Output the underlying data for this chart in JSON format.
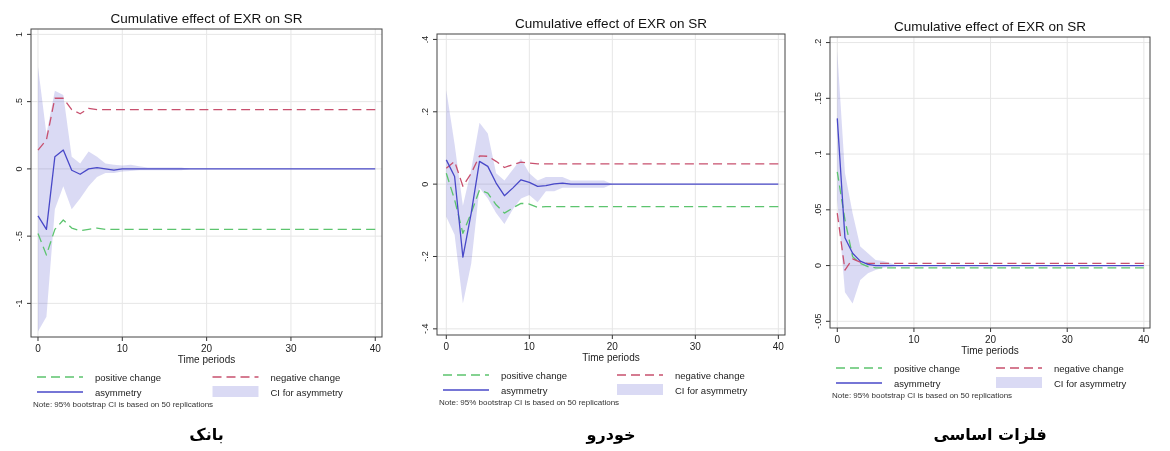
{
  "chart_data": [
    {
      "type": "line",
      "title": "Cumulative effect of EXR on SR",
      "xlabel": "Time periods",
      "x": [
        0,
        1,
        2,
        3,
        4,
        5,
        6,
        7,
        8,
        9,
        10,
        11,
        12,
        13,
        14,
        15,
        16,
        17,
        18,
        19,
        20,
        21,
        22,
        23,
        24,
        25,
        26,
        27,
        28,
        29,
        30,
        31,
        32,
        33,
        34,
        35,
        36,
        37,
        38,
        39,
        40
      ],
      "xlim": [
        -0.83,
        40.8
      ],
      "xticks": [
        0,
        10,
        20,
        30,
        40
      ],
      "ylim": [
        -1.25,
        1.04
      ],
      "yticks": [
        1,
        {
          "value": 0.5,
          "label": ".5"
        },
        0,
        {
          "value": -0.5,
          "label": "-.5"
        },
        -1
      ],
      "grid": true,
      "legend": "bottom",
      "annotations": [
        "CI for asymmetry",
        "Note: 95% bootstrap CI is based on 50 replications",
        "بانک"
      ],
      "series": [
        {
          "name": "positive change",
          "color": "#5cc46e",
          "line_style": "dashed",
          "values": [
            -0.48,
            -0.64,
            -0.45,
            -0.38,
            -0.44,
            -0.46,
            -0.45,
            -0.44,
            -0.45,
            -0.45,
            -0.45,
            -0.45,
            -0.45,
            -0.45,
            -0.45,
            -0.45,
            -0.45,
            -0.45,
            -0.45,
            -0.45,
            -0.45,
            -0.45,
            -0.45,
            -0.45,
            -0.45,
            -0.45,
            -0.45,
            -0.45,
            -0.45,
            -0.45,
            -0.45,
            -0.45,
            -0.45,
            -0.45,
            -0.45,
            -0.45,
            -0.45,
            -0.45,
            -0.45,
            -0.45,
            -0.45
          ]
        },
        {
          "name": "negative change",
          "color": "#c8506e",
          "line_style": "dashed",
          "values": [
            0.14,
            0.215,
            0.525,
            0.525,
            0.44,
            0.41,
            0.45,
            0.44,
            0.44,
            0.44,
            0.44,
            0.44,
            0.44,
            0.44,
            0.44,
            0.44,
            0.44,
            0.44,
            0.44,
            0.44,
            0.44,
            0.44,
            0.44,
            0.44,
            0.44,
            0.44,
            0.44,
            0.44,
            0.44,
            0.44,
            0.44,
            0.44,
            0.44,
            0.44,
            0.44,
            0.44,
            0.44,
            0.44,
            0.44,
            0.44,
            0.44
          ]
        },
        {
          "name": "asymmetry",
          "color": "#4848c8",
          "line_style": "solid",
          "values": [
            -0.35,
            -0.45,
            0.09,
            0.14,
            -0.01,
            -0.04,
            0,
            0.01,
            0,
            -0.01,
            0,
            0,
            0,
            0,
            0,
            0,
            0,
            0,
            0,
            0,
            0,
            0,
            0,
            0,
            0,
            0,
            0,
            0,
            0,
            0,
            0,
            0,
            0,
            0,
            0,
            0,
            0,
            0,
            0,
            0,
            0
          ],
          "upper": [
            0.76,
            0.26,
            0.58,
            0.55,
            0.09,
            0.04,
            0.13,
            0.09,
            0.04,
            0.03,
            0.025,
            0.03,
            0.02,
            0.01,
            0.01,
            0.01,
            0.01,
            0.01,
            0,
            0,
            0,
            0,
            0,
            0,
            0,
            0,
            0,
            0,
            0,
            0,
            0,
            0,
            0,
            0,
            0,
            0,
            0,
            0,
            0,
            0,
            0
          ],
          "lower": [
            -1.21,
            -1.1,
            -0.3,
            -0.13,
            -0.3,
            -0.22,
            -0.13,
            -0.06,
            -0.03,
            -0.03,
            -0.02,
            -0.015,
            -0.01,
            -0.01,
            -0.01,
            -0.01,
            -0.01,
            -0.01,
            0,
            0,
            0,
            0,
            0,
            0,
            0,
            0,
            0,
            0,
            0,
            0,
            0,
            0,
            0,
            0,
            0,
            0,
            0,
            0,
            0,
            0,
            0
          ]
        }
      ]
    },
    {
      "type": "line",
      "title": "Cumulative effect of EXR on SR",
      "xlabel": "Time periods",
      "x": [
        0,
        1,
        2,
        3,
        4,
        5,
        6,
        7,
        8,
        9,
        10,
        11,
        12,
        13,
        14,
        15,
        16,
        17,
        18,
        19,
        20,
        21,
        22,
        23,
        24,
        25,
        26,
        27,
        28,
        29,
        30,
        31,
        32,
        33,
        34,
        35,
        36,
        37,
        38,
        39,
        40
      ],
      "xlim": [
        -1.12,
        40.8
      ],
      "xticks": [
        0,
        10,
        20,
        30,
        40
      ],
      "ylim": [
        -0.417,
        0.415
      ],
      "yticks": [
        {
          "value": 0.4,
          "label": ".4"
        },
        {
          "value": 0.2,
          "label": ".2"
        },
        0,
        {
          "value": -0.2,
          "label": "-.2"
        },
        {
          "value": -0.4,
          "label": "-.4"
        }
      ],
      "grid": true,
      "legend": "bottom",
      "annotations": [
        "CI for asymmetry",
        "Note: 95% bootstrap CI is based on 50 replications",
        "خودرو"
      ],
      "series": [
        {
          "name": "positive change",
          "color": "#5cc46e",
          "line_style": "dashed",
          "values": [
            0.03,
            -0.043,
            -0.136,
            -0.08,
            -0.016,
            -0.025,
            -0.057,
            -0.08,
            -0.066,
            -0.053,
            -0.055,
            -0.064,
            -0.062,
            -0.062,
            -0.062,
            -0.062,
            -0.062,
            -0.062,
            -0.062,
            -0.062,
            -0.062,
            -0.062,
            -0.062,
            -0.062,
            -0.062,
            -0.062,
            -0.062,
            -0.062,
            -0.062,
            -0.062,
            -0.062,
            -0.062,
            -0.062,
            -0.062,
            -0.062,
            -0.062,
            -0.062,
            -0.062,
            -0.062,
            -0.062,
            -0.062
          ]
        },
        {
          "name": "negative change",
          "color": "#c8506e",
          "line_style": "dashed",
          "values": [
            0.044,
            0.063,
            -0.006,
            0.03,
            0.078,
            0.077,
            0.063,
            0.046,
            0.054,
            0.061,
            0.058,
            0.056,
            0.056,
            0.056,
            0.056,
            0.056,
            0.056,
            0.056,
            0.056,
            0.056,
            0.056,
            0.056,
            0.056,
            0.056,
            0.056,
            0.056,
            0.056,
            0.056,
            0.056,
            0.056,
            0.056,
            0.056,
            0.056,
            0.056,
            0.056,
            0.056,
            0.056,
            0.056,
            0.056,
            0.056,
            0.056
          ]
        },
        {
          "name": "asymmetry",
          "color": "#4848c8",
          "line_style": "solid",
          "values": [
            0.067,
            0.021,
            -0.202,
            -0.08,
            0.063,
            0.049,
            0.003,
            -0.032,
            -0.011,
            0.012,
            0.005,
            -0.006,
            -0.004,
            0.001,
            0.003,
            0,
            0,
            0,
            0,
            0,
            0,
            0,
            0,
            0,
            0,
            0,
            0,
            0,
            0,
            0,
            0,
            0,
            0,
            0,
            0,
            0,
            0,
            0,
            0,
            0,
            0
          ],
          "upper": [
            0.26,
            0.11,
            -0.06,
            0.04,
            0.17,
            0.14,
            0.03,
            0.01,
            0.04,
            0.07,
            0.03,
            0.01,
            0.02,
            0.02,
            0.02,
            0.01,
            0.01,
            0.01,
            0.01,
            0.01,
            0,
            0,
            0,
            0,
            0,
            0,
            0,
            0,
            0,
            0,
            0,
            0,
            0,
            0,
            0,
            0,
            0,
            0,
            0,
            0,
            0
          ],
          "lower": [
            -0.09,
            -0.14,
            -0.33,
            -0.22,
            -0.01,
            -0.04,
            -0.08,
            -0.11,
            -0.07,
            -0.04,
            -0.03,
            -0.05,
            -0.02,
            -0.02,
            -0.01,
            -0.01,
            -0.01,
            -0.01,
            -0.01,
            -0.01,
            0,
            0,
            0,
            0,
            0,
            0,
            0,
            0,
            0,
            0,
            0,
            0,
            0,
            0,
            0,
            0,
            0,
            0,
            0,
            0,
            0
          ]
        }
      ]
    },
    {
      "type": "line",
      "title": "Cumulative effect of EXR on SR",
      "xlabel": "Time periods",
      "x": [
        0,
        1,
        2,
        3,
        4,
        5,
        6,
        7,
        8,
        9,
        10,
        11,
        12,
        13,
        14,
        15,
        16,
        17,
        18,
        19,
        20,
        21,
        22,
        23,
        24,
        25,
        26,
        27,
        28,
        29,
        30,
        31,
        32,
        33,
        34,
        35,
        36,
        37,
        38,
        39,
        40
      ],
      "xlim": [
        -0.95,
        40.8
      ],
      "xticks": [
        0,
        10,
        20,
        30,
        40
      ],
      "ylim": [
        -0.056,
        0.205
      ],
      "yticks": [
        {
          "value": 0.2,
          "label": ".2"
        },
        {
          "value": 0.15,
          "label": ".15"
        },
        {
          "value": 0.1,
          "label": ".1"
        },
        {
          "value": 0.05,
          "label": ".05"
        },
        0,
        {
          "value": -0.05,
          "label": "-.05"
        }
      ],
      "grid": true,
      "legend": "bottom",
      "annotations": [
        "CI for asymmetry",
        "Note: 95% bootstrap CI is based on 50 replications",
        "فلزات اساسی"
      ],
      "series": [
        {
          "name": "positive change",
          "color": "#5cc46e",
          "line_style": "dashed",
          "values": [
            0.084,
            0.041,
            0.008,
            0.002,
            -0.001,
            -0.002,
            -0.002,
            -0.002,
            -0.002,
            -0.002,
            -0.002,
            -0.002,
            -0.002,
            -0.002,
            -0.002,
            -0.002,
            -0.002,
            -0.002,
            -0.002,
            -0.002,
            -0.002,
            -0.002,
            -0.002,
            -0.002,
            -0.002,
            -0.002,
            -0.002,
            -0.002,
            -0.002,
            -0.002,
            -0.002,
            -0.002,
            -0.002,
            -0.002,
            -0.002,
            -0.002,
            -0.002,
            -0.002,
            -0.002,
            -0.002,
            -0.002
          ]
        },
        {
          "name": "negative change",
          "color": "#c8506e",
          "line_style": "dashed",
          "values": [
            0.047,
            -0.004,
            0.006,
            0.003,
            0.002,
            0.002,
            0.002,
            0.002,
            0.002,
            0.002,
            0.002,
            0.002,
            0.002,
            0.002,
            0.002,
            0.002,
            0.002,
            0.002,
            0.002,
            0.002,
            0.002,
            0.002,
            0.002,
            0.002,
            0.002,
            0.002,
            0.002,
            0.002,
            0.002,
            0.002,
            0.002,
            0.002,
            0.002,
            0.002,
            0.002,
            0.002,
            0.002,
            0.002,
            0.002,
            0.002,
            0.002
          ]
        },
        {
          "name": "asymmetry",
          "color": "#4848c8",
          "line_style": "solid",
          "values": [
            0.132,
            0.025,
            0.011,
            0.004,
            0.001,
            0,
            0,
            0,
            0,
            0,
            0,
            0,
            0,
            0,
            0,
            0,
            0,
            0,
            0,
            0,
            0,
            0,
            0,
            0,
            0,
            0,
            0,
            0,
            0,
            0,
            0,
            0,
            0,
            0,
            0,
            0,
            0,
            0,
            0,
            0,
            0
          ],
          "upper": [
            0.192,
            0.083,
            0.047,
            0.017,
            0.011,
            0.005,
            0.004,
            0.002,
            0,
            0,
            0,
            0,
            0,
            0,
            0,
            0,
            0,
            0,
            0,
            0,
            0,
            0,
            0,
            0,
            0,
            0,
            0,
            0,
            0,
            0,
            0,
            0,
            0,
            0,
            0,
            0,
            0,
            0,
            0,
            0,
            0
          ],
          "lower": [
            0.059,
            -0.024,
            -0.034,
            -0.013,
            -0.007,
            -0.004,
            -0.002,
            -0.001,
            0,
            0,
            0,
            0,
            0,
            0,
            0,
            0,
            0,
            0,
            0,
            0,
            0,
            0,
            0,
            0,
            0,
            0,
            0,
            0,
            0,
            0,
            0,
            0,
            0,
            0,
            0,
            0,
            0,
            0,
            0,
            0,
            0
          ]
        }
      ]
    }
  ]
}
